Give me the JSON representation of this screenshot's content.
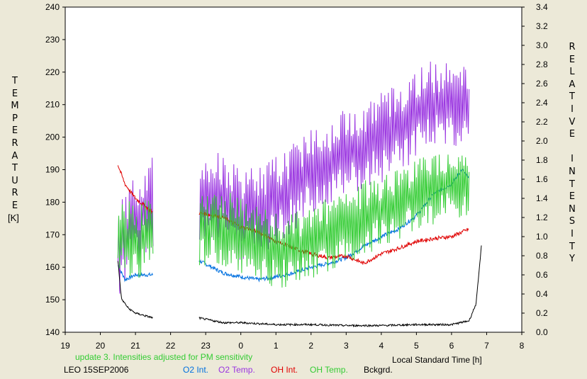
{
  "chart_data": {
    "type": "line",
    "left_axis": {
      "label": "TEMPERATURE",
      "unit": "[K]",
      "ylim": [
        140,
        240
      ],
      "ticks": [
        140,
        150,
        160,
        170,
        180,
        190,
        200,
        210,
        220,
        230,
        240
      ]
    },
    "right_axis": {
      "label": "RELATIVE INTENSITY",
      "ylim": [
        0.0,
        3.4
      ],
      "ticks": [
        "0.0",
        "0.2",
        "0.4",
        "0.6",
        "0.8",
        "1.0",
        "1.2",
        "1.4",
        "1.6",
        "1.8",
        "2.0",
        "2.2",
        "2.4",
        "2.6",
        "2.8",
        "3.0",
        "3.2",
        "3.4"
      ]
    },
    "x_axis": {
      "label": "Local Standard Time [h]",
      "xlim": [
        19,
        32
      ],
      "tick_labels": [
        "19",
        "20",
        "21",
        "22",
        "23",
        "0",
        "1",
        "2",
        "3",
        "4",
        "5",
        "6",
        "7",
        "8"
      ]
    },
    "gaps": [
      [
        21.5,
        22.8
      ]
    ],
    "series": [
      {
        "name": "O2 Int.",
        "axis": "right",
        "color": "#0070e0",
        "points": [
          [
            20.5,
            0.7
          ],
          [
            20.7,
            0.55
          ],
          [
            21.0,
            0.6
          ],
          [
            21.5,
            0.6
          ],
          [
            22.8,
            0.75
          ],
          [
            23.5,
            0.62
          ],
          [
            24.0,
            0.58
          ],
          [
            24.5,
            0.55
          ],
          [
            25.0,
            0.58
          ],
          [
            25.5,
            0.62
          ],
          [
            26.0,
            0.68
          ],
          [
            26.5,
            0.72
          ],
          [
            27.0,
            0.78
          ],
          [
            27.5,
            0.9
          ],
          [
            28.0,
            1.0
          ],
          [
            28.5,
            1.08
          ],
          [
            29.0,
            1.22
          ],
          [
            29.5,
            1.45
          ],
          [
            30.0,
            1.55
          ],
          [
            30.3,
            1.7
          ],
          [
            30.5,
            1.6
          ]
        ]
      },
      {
        "name": "O2 Temp.",
        "axis": "left",
        "color": "#9933e0",
        "points": [
          [
            20.5,
            165
          ],
          [
            21.0,
            175
          ],
          [
            21.5,
            180
          ],
          [
            22.8,
            180
          ],
          [
            23.5,
            182
          ],
          [
            24.0,
            175
          ],
          [
            24.5,
            178
          ],
          [
            25.0,
            180
          ],
          [
            25.5,
            185
          ],
          [
            26.0,
            190
          ],
          [
            26.5,
            192
          ],
          [
            27.0,
            195
          ],
          [
            27.5,
            198
          ],
          [
            28.0,
            200
          ],
          [
            28.5,
            203
          ],
          [
            29.0,
            207
          ],
          [
            29.5,
            210
          ],
          [
            30.0,
            212
          ],
          [
            30.5,
            210
          ]
        ],
        "noise": 11
      },
      {
        "name": "OH Int.",
        "axis": "right",
        "color": "#e00000",
        "points": [
          [
            20.5,
            1.75
          ],
          [
            20.7,
            1.55
          ],
          [
            21.0,
            1.4
          ],
          [
            21.5,
            1.25
          ],
          [
            22.8,
            1.25
          ],
          [
            23.5,
            1.2
          ],
          [
            24.0,
            1.1
          ],
          [
            24.5,
            1.05
          ],
          [
            25.0,
            0.95
          ],
          [
            25.5,
            0.88
          ],
          [
            26.0,
            0.82
          ],
          [
            26.5,
            0.78
          ],
          [
            27.0,
            0.8
          ],
          [
            27.5,
            0.72
          ],
          [
            28.0,
            0.82
          ],
          [
            28.5,
            0.88
          ],
          [
            29.0,
            0.95
          ],
          [
            29.5,
            0.98
          ],
          [
            30.0,
            1.0
          ],
          [
            30.5,
            1.08
          ]
        ]
      },
      {
        "name": "OH Temp.",
        "axis": "left",
        "color": "#33cc33",
        "points": [
          [
            20.5,
            170
          ],
          [
            21.0,
            168
          ],
          [
            21.5,
            170
          ],
          [
            22.8,
            172
          ],
          [
            23.5,
            172
          ],
          [
            24.0,
            170
          ],
          [
            24.5,
            168
          ],
          [
            25.0,
            165
          ],
          [
            25.5,
            165
          ],
          [
            26.0,
            168
          ],
          [
            26.5,
            170
          ],
          [
            27.0,
            172
          ],
          [
            27.5,
            175
          ],
          [
            28.0,
            178
          ],
          [
            28.5,
            180
          ],
          [
            29.0,
            182
          ],
          [
            29.5,
            185
          ],
          [
            30.0,
            186
          ],
          [
            30.5,
            185
          ]
        ],
        "noise": 9
      },
      {
        "name": "Bckgrd.",
        "axis": "right",
        "color": "#000000",
        "points": [
          [
            20.5,
            0.75
          ],
          [
            20.6,
            0.35
          ],
          [
            20.8,
            0.25
          ],
          [
            21.0,
            0.2
          ],
          [
            21.5,
            0.15
          ],
          [
            22.8,
            0.15
          ],
          [
            23.5,
            0.1
          ],
          [
            24.0,
            0.1
          ],
          [
            25.0,
            0.08
          ],
          [
            26.0,
            0.08
          ],
          [
            27.0,
            0.07
          ],
          [
            28.0,
            0.07
          ],
          [
            29.0,
            0.08
          ],
          [
            30.0,
            0.08
          ],
          [
            30.5,
            0.12
          ],
          [
            30.7,
            0.3
          ],
          [
            30.85,
            0.9
          ]
        ],
        "noise": 0.01
      }
    ]
  },
  "notes": {
    "update": "update 3. Intensities adjusted for PM sensitivity",
    "station": "LEO 15SEP2006"
  },
  "colors": {
    "background": "#ece9d8",
    "note": "#33cc33"
  }
}
